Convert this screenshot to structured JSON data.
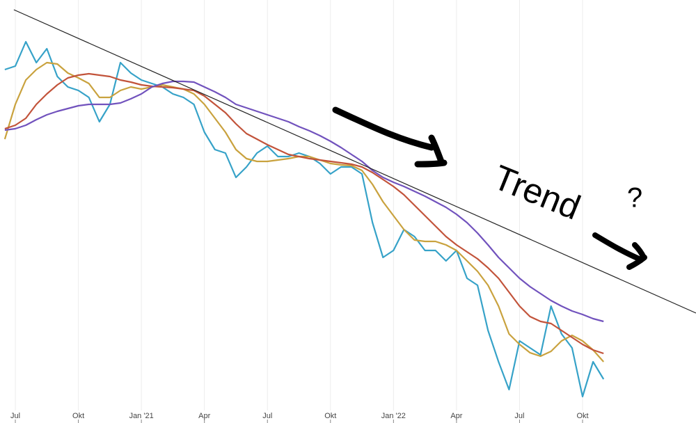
{
  "chart_data": {
    "type": "line",
    "x": [
      -0.5,
      0,
      0.5,
      1,
      1.5,
      2,
      2.5,
      3,
      3.5,
      4,
      4.5,
      5,
      5.5,
      6,
      6.5,
      7,
      7.5,
      8,
      8.5,
      9,
      9.5,
      10,
      10.5,
      11,
      11.5,
      12,
      12.5,
      13,
      13.5,
      14,
      14.5,
      15,
      15.5,
      16,
      16.5,
      17,
      17.5,
      18,
      18.5,
      19,
      19.5,
      20,
      20.5,
      21,
      21.5,
      22,
      22.5,
      23,
      23.5,
      24,
      24.5,
      25,
      25.5,
      26,
      26.5,
      27,
      27.5,
      28
    ],
    "xlim": [
      -0.73,
      32.4
    ],
    "xticks": [
      {
        "value": 0,
        "label": "Jul"
      },
      {
        "value": 3,
        "label": "Okt"
      },
      {
        "value": 6,
        "label": "Jan '21"
      },
      {
        "value": 9,
        "label": "Apr"
      },
      {
        "value": 12,
        "label": "Jul"
      },
      {
        "value": 15,
        "label": "Okt"
      },
      {
        "value": 18,
        "label": "Jan '22"
      },
      {
        "value": 21,
        "label": "Apr"
      },
      {
        "value": 24,
        "label": "Jul"
      },
      {
        "value": 27,
        "label": "Okt"
      }
    ],
    "ylim": [
      0,
      608
    ],
    "grid": true,
    "series": [
      {
        "color": "#36a2c8",
        "values": [
          508,
          513,
          548,
          518,
          538,
          498,
          483,
          478,
          468,
          433,
          458,
          518,
          503,
          493,
          488,
          483,
          473,
          468,
          458,
          418,
          393,
          388,
          353,
          368,
          388,
          398,
          383,
          383,
          388,
          383,
          373,
          358,
          368,
          368,
          358,
          288,
          238,
          248,
          278,
          268,
          248,
          248,
          233,
          248,
          208,
          198,
          133,
          88,
          48,
          118,
          108,
          98,
          168,
          128,
          108,
          38,
          88,
          63
        ]
      },
      {
        "color": "#c9a23e",
        "values": [
          408,
          458,
          493,
          508,
          518,
          516,
          503,
          496,
          488,
          468,
          468,
          478,
          483,
          480,
          483,
          486,
          483,
          480,
          473,
          458,
          438,
          418,
          393,
          380,
          376,
          376,
          378,
          380,
          383,
          383,
          378,
          373,
          371,
          370,
          363,
          343,
          318,
          298,
          278,
          263,
          261,
          261,
          256,
          248,
          233,
          218,
          198,
          168,
          128,
          113,
          101,
          96,
          103,
          118,
          126,
          118,
          105,
          88
        ]
      },
      {
        "color": "#c2533a",
        "values": [
          423,
          428,
          438,
          458,
          473,
          486,
          496,
          500,
          502,
          500,
          498,
          493,
          490,
          486,
          484,
          483,
          482,
          480,
          478,
          470,
          458,
          446,
          430,
          416,
          408,
          400,
          393,
          386,
          383,
          380,
          378,
          376,
          374,
          372,
          368,
          360,
          350,
          340,
          328,
          313,
          298,
          283,
          268,
          256,
          246,
          236,
          223,
          208,
          188,
          168,
          153,
          146,
          143,
          133,
          123,
          113,
          105,
          100
        ]
      },
      {
        "color": "#7152bd",
        "values": [
          421,
          423,
          428,
          436,
          443,
          448,
          452,
          456,
          458,
          458,
          458,
          460,
          466,
          473,
          483,
          488,
          491,
          491,
          490,
          483,
          476,
          468,
          458,
          453,
          448,
          443,
          438,
          433,
          426,
          420,
          413,
          405,
          396,
          386,
          376,
          363,
          353,
          346,
          340,
          333,
          326,
          318,
          310,
          300,
          288,
          273,
          256,
          238,
          223,
          208,
          196,
          186,
          176,
          168,
          161,
          156,
          150,
          146
        ]
      },
      {
        "color": "#222222",
        "x": [
          -0.07,
          32.4
        ],
        "values": [
          594,
          158
        ]
      }
    ],
    "annotations": [
      "Trend",
      "?"
    ]
  }
}
